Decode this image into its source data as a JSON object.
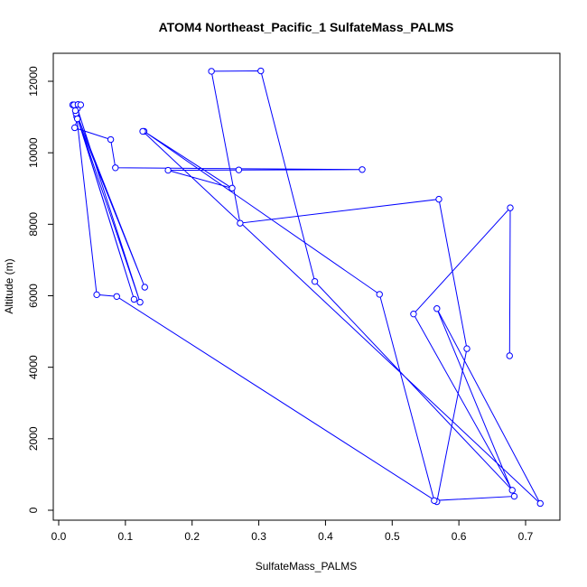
{
  "chart_data": {
    "type": "line",
    "title": "ATOM4 Northeast_Pacific_1 SulfateMass_PALMS",
    "xlabel": "SulfateMass_PALMS",
    "ylabel": "Altitude (m)",
    "xlim": [
      0,
      0.75
    ],
    "ylim": [
      0,
      12800
    ],
    "x_ticks": [
      0.0,
      0.1,
      0.2,
      0.3,
      0.4,
      0.5,
      0.6,
      0.7
    ],
    "x_tick_labels": [
      "0.0",
      "0.1",
      "0.2",
      "0.3",
      "0.4",
      "0.5",
      "0.6",
      "0.7"
    ],
    "y_ticks": [
      0,
      2000,
      4000,
      6000,
      8000,
      10000,
      12000
    ],
    "y_tick_labels": [
      "0",
      "2000",
      "4000",
      "6000",
      "8000",
      "10000",
      "12000"
    ],
    "grid": false,
    "colors": {
      "series": "#0000ff",
      "axis": "#000000",
      "background": "#ffffff"
    },
    "series": [
      {
        "marker": "open-circle",
        "points": [
          [
            0.676,
            4320
          ],
          [
            0.677,
            8460
          ],
          [
            0.532,
            5490
          ],
          [
            0.68,
            560
          ],
          [
            0.384,
            6400
          ],
          [
            0.303,
            12290
          ],
          [
            0.229,
            12280
          ],
          [
            0.272,
            8030
          ],
          [
            0.57,
            8700
          ],
          [
            0.612,
            4520
          ],
          [
            0.567,
            240
          ],
          [
            0.087,
            5980
          ],
          [
            0.057,
            6030
          ],
          [
            0.027,
            11010
          ],
          [
            0.028,
            11240
          ],
          [
            0.122,
            5820
          ],
          [
            0.026,
            11100
          ],
          [
            0.113,
            5900
          ],
          [
            0.025,
            11180
          ],
          [
            0.129,
            6240
          ],
          [
            0.028,
            10950
          ],
          [
            0.024,
            10700
          ],
          [
            0.078,
            10370
          ],
          [
            0.085,
            9580
          ],
          [
            0.455,
            9530
          ],
          [
            0.27,
            9520
          ],
          [
            0.164,
            9510
          ],
          [
            0.26,
            9010
          ],
          [
            0.128,
            10600
          ],
          [
            0.481,
            6040
          ],
          [
            0.563,
            270
          ],
          [
            0.683,
            390
          ],
          [
            0.567,
            5640
          ],
          [
            0.722,
            190
          ],
          [
            0.126,
            10600
          ]
        ]
      }
    ],
    "extra_points": [
      [
        0.021,
        11340
      ],
      [
        0.023,
        11340
      ],
      [
        0.029,
        11350
      ],
      [
        0.033,
        11340
      ]
    ]
  }
}
